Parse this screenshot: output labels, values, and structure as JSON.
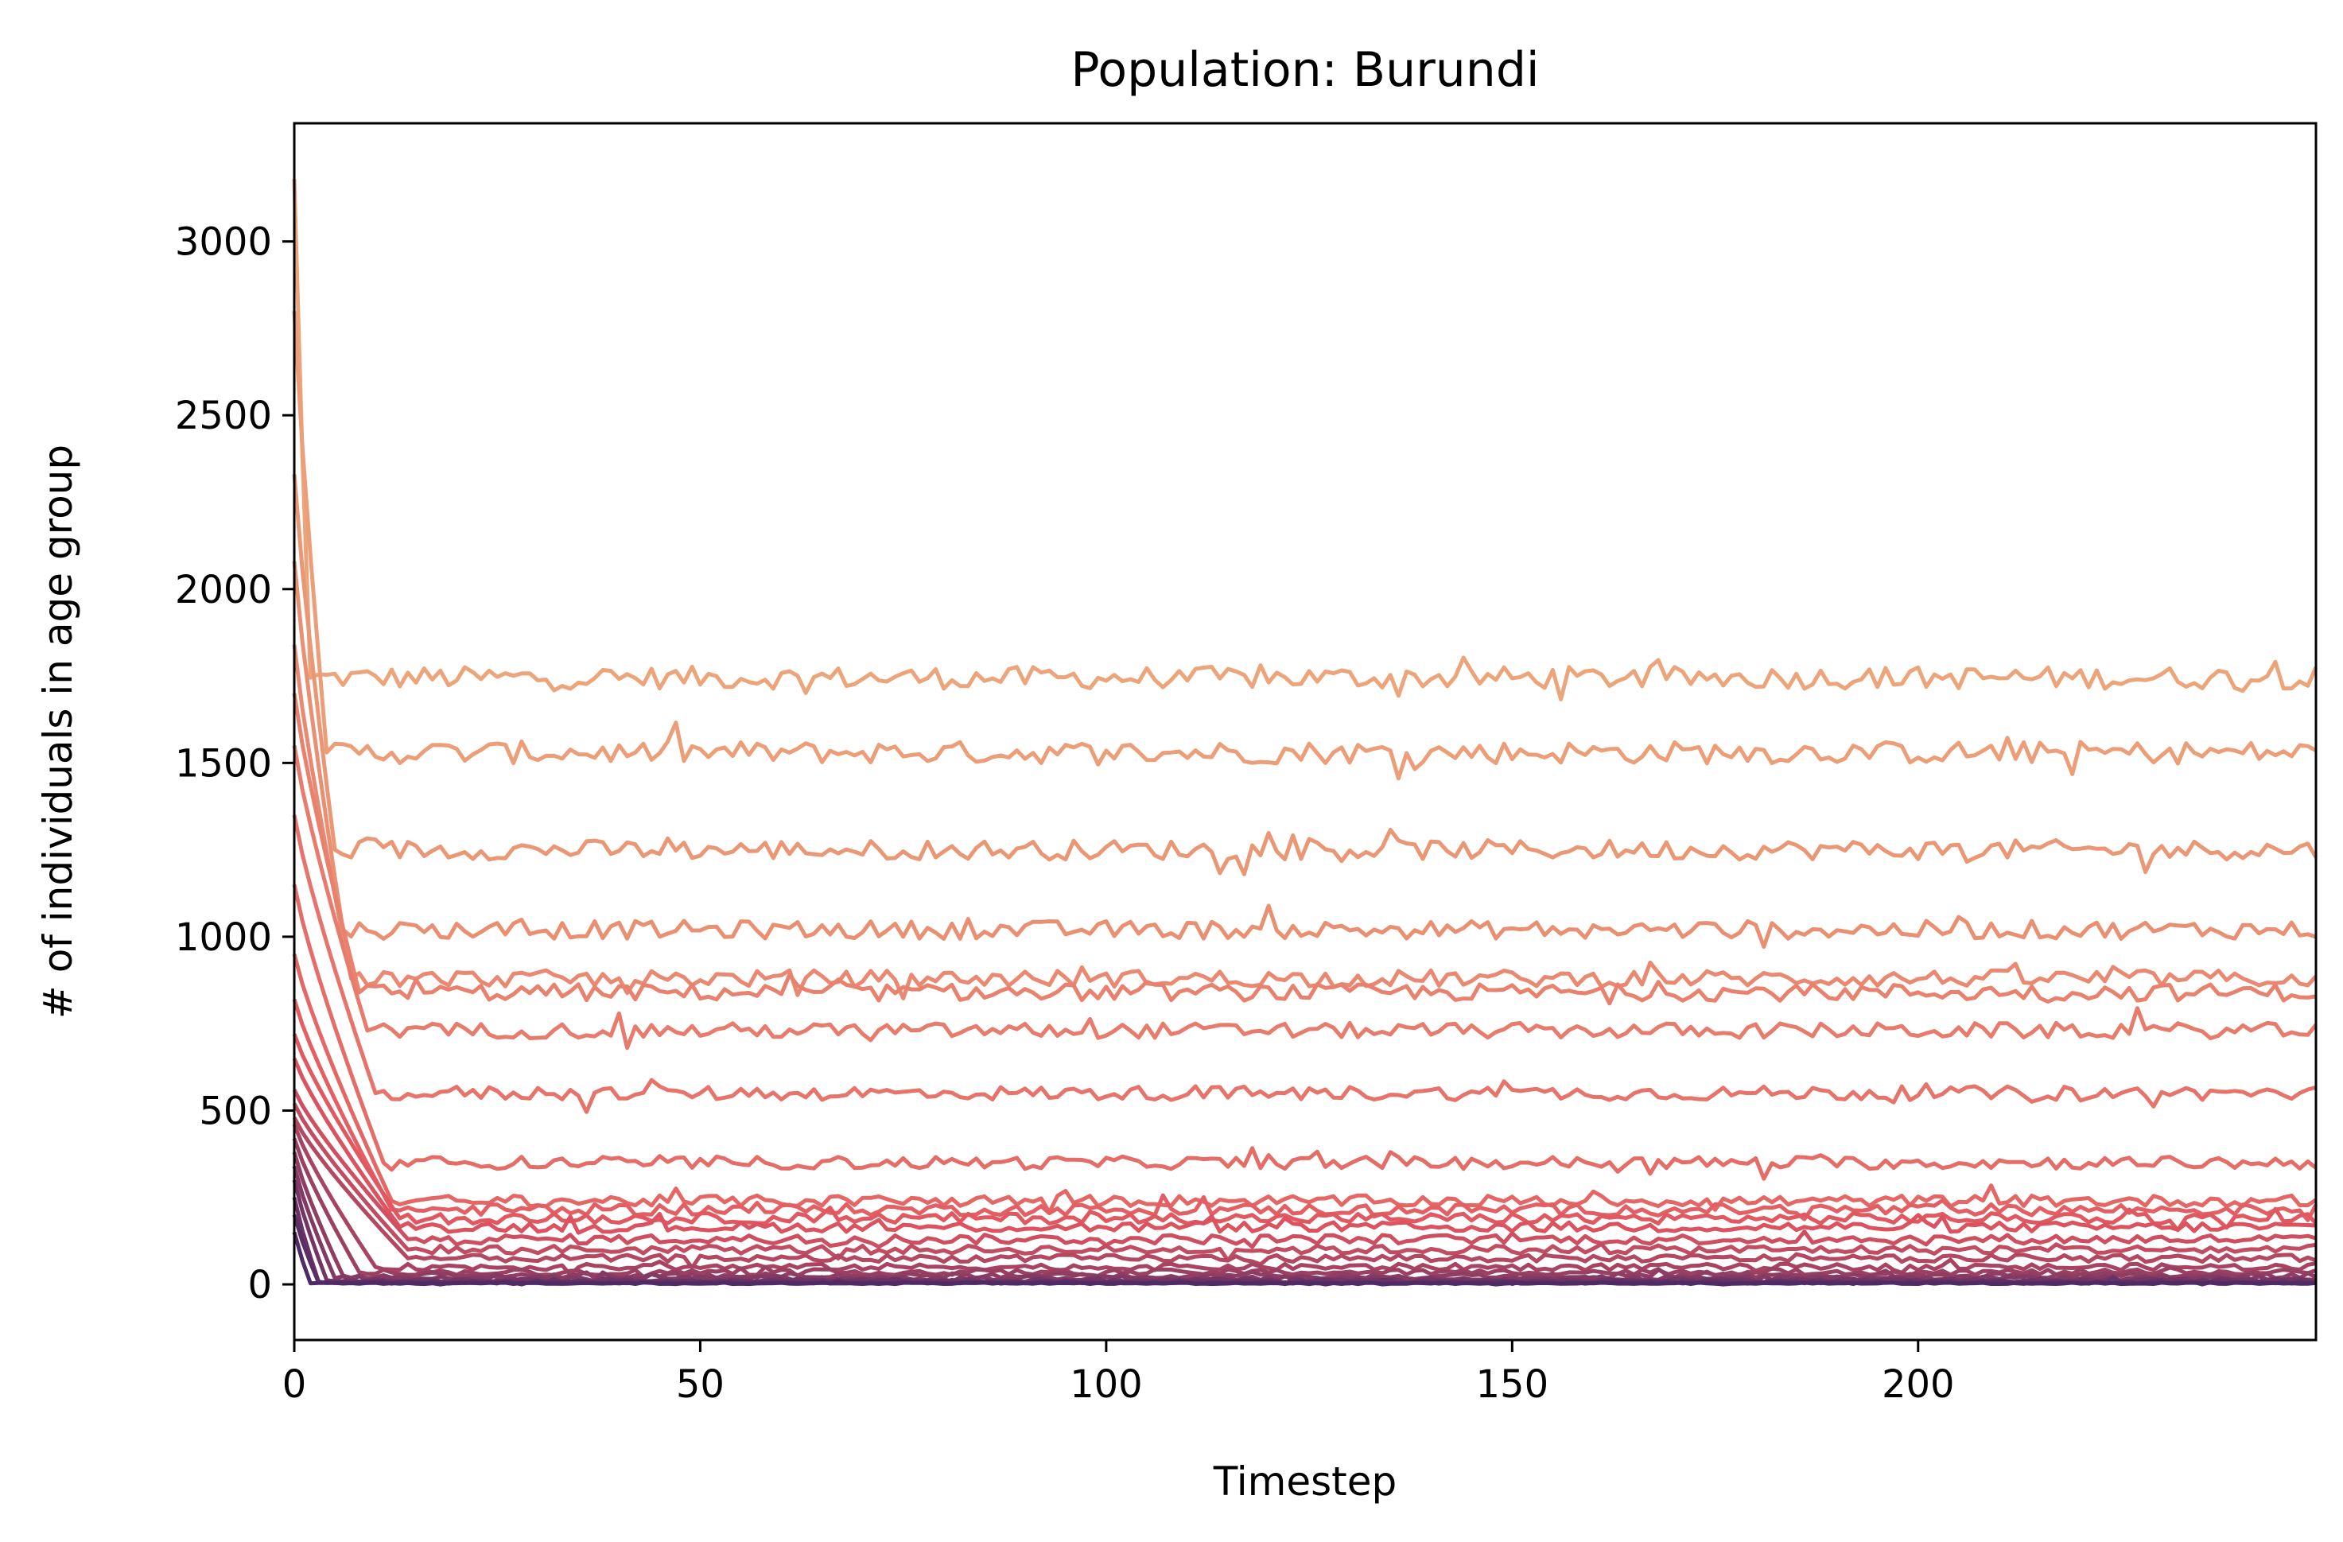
{
  "chart_data": {
    "type": "line",
    "title": "Population: Burundi",
    "xlabel": "Timestep",
    "ylabel": "# of individuals in age group",
    "xlim": [
      0,
      249
    ],
    "ylim": [
      -160,
      3340
    ],
    "xticks": [
      0,
      50,
      100,
      150,
      200
    ],
    "yticks": [
      0,
      500,
      1000,
      1500,
      2000,
      2500,
      3000
    ],
    "grid": false,
    "legend": "none",
    "colormap": "flare",
    "color_start": "#eca57a",
    "color_end": "#4f2a66",
    "n_timesteps": 250,
    "series_summary": [
      {
        "initial": 3180,
        "settle_step": 2,
        "steady": 1745,
        "noise": 32
      },
      {
        "initial": 2800,
        "settle_step": 4,
        "steady": 1530,
        "noise": 32
      },
      {
        "initial": 2330,
        "settle_step": 5,
        "steady": 1250,
        "noise": 28
      },
      {
        "initial": 2080,
        "settle_step": 6,
        "steady": 1020,
        "noise": 26
      },
      {
        "initial": 1840,
        "settle_step": 7,
        "steady": 880,
        "noise": 24
      },
      {
        "initial": 1700,
        "settle_step": 8,
        "steady": 840,
        "noise": 24
      },
      {
        "initial": 1550,
        "settle_step": 9,
        "steady": 730,
        "noise": 22
      },
      {
        "initial": 1350,
        "settle_step": 10,
        "steady": 550,
        "noise": 20
      },
      {
        "initial": 1150,
        "settle_step": 11,
        "steady": 350,
        "noise": 18
      },
      {
        "initial": 950,
        "settle_step": 12,
        "steady": 240,
        "noise": 16
      },
      {
        "initial": 820,
        "settle_step": 12,
        "steady": 215,
        "noise": 16
      },
      {
        "initial": 720,
        "settle_step": 13,
        "steady": 190,
        "noise": 15
      },
      {
        "initial": 650,
        "settle_step": 13,
        "steady": 165,
        "noise": 14
      },
      {
        "initial": 560,
        "settle_step": 14,
        "steady": 130,
        "noise": 13
      },
      {
        "initial": 520,
        "settle_step": 14,
        "steady": 100,
        "noise": 12
      },
      {
        "initial": 480,
        "settle_step": 14,
        "steady": 75,
        "noise": 10
      },
      {
        "initial": 460,
        "settle_step": 10,
        "steady": 50,
        "noise": 9
      },
      {
        "initial": 420,
        "settle_step": 8,
        "steady": 35,
        "noise": 8
      },
      {
        "initial": 380,
        "settle_step": 6,
        "steady": 25,
        "noise": 7
      },
      {
        "initial": 340,
        "settle_step": 5,
        "steady": 18,
        "noise": 6
      },
      {
        "initial": 300,
        "settle_step": 4,
        "steady": 12,
        "noise": 5
      },
      {
        "initial": 250,
        "settle_step": 3,
        "steady": 8,
        "noise": 4
      },
      {
        "initial": 200,
        "settle_step": 3,
        "steady": 5,
        "noise": 3
      },
      {
        "initial": 150,
        "settle_step": 2,
        "steady": 3,
        "noise": 2
      }
    ]
  }
}
